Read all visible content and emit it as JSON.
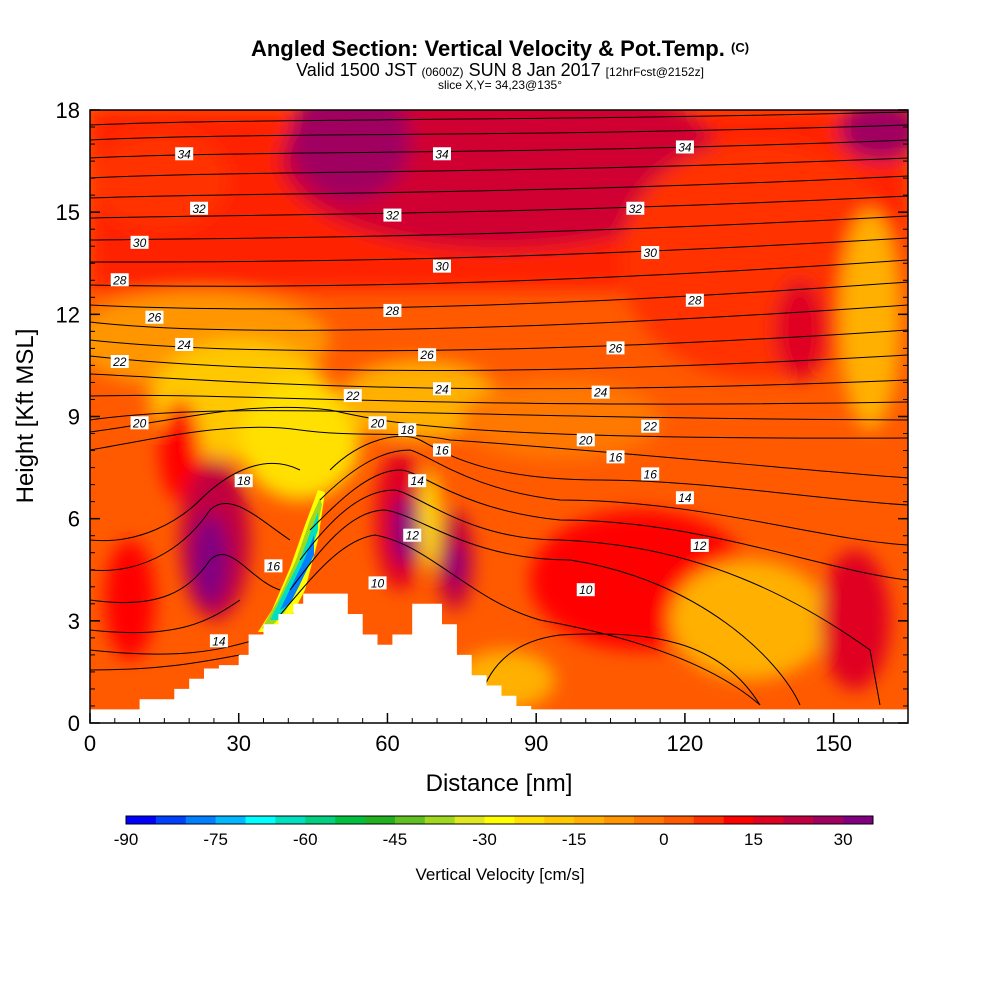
{
  "header": {
    "title_main": "Angled Section: Vertical Velocity & Pot.Temp.",
    "title_unit": "(C)",
    "valid_a": "Valid 1500 JST",
    "valid_b": "(0600Z)",
    "valid_c": "SUN 8 Jan 2017",
    "valid_d": "[12hrFcst@2152z]",
    "slice": "slice X,Y= 34,23@135°"
  },
  "chart_data": {
    "type": "heatmap",
    "xlabel": "Distance [nm]",
    "ylabel": "Height [Kft MSL]",
    "xlim": [
      0,
      165
    ],
    "ylim": [
      0,
      18
    ],
    "x_ticks": [
      "0",
      "30",
      "60",
      "90",
      "120",
      "150"
    ],
    "y_ticks": [
      "0",
      "3",
      "6",
      "9",
      "12",
      "15",
      "18"
    ],
    "terrain": [
      [
        0,
        0.4
      ],
      [
        10,
        0.4
      ],
      [
        10,
        0.7
      ],
      [
        17,
        0.7
      ],
      [
        17,
        1.0
      ],
      [
        20,
        1.0
      ],
      [
        20,
        1.3
      ],
      [
        23,
        1.3
      ],
      [
        23,
        1.6
      ],
      [
        26,
        1.6
      ],
      [
        26,
        1.7
      ],
      [
        30,
        1.7
      ],
      [
        30,
        2.0
      ],
      [
        32,
        2.0
      ],
      [
        32,
        2.6
      ],
      [
        35,
        2.6
      ],
      [
        35,
        2.9
      ],
      [
        38,
        2.9
      ],
      [
        38,
        3.2
      ],
      [
        41,
        3.2
      ],
      [
        41,
        3.5
      ],
      [
        43,
        3.5
      ],
      [
        43,
        3.8
      ],
      [
        52,
        3.8
      ],
      [
        52,
        3.2
      ],
      [
        55,
        3.2
      ],
      [
        55,
        2.6
      ],
      [
        58,
        2.6
      ],
      [
        58,
        2.3
      ],
      [
        61,
        2.3
      ],
      [
        61,
        2.6
      ],
      [
        65,
        2.6
      ],
      [
        65,
        3.5
      ],
      [
        71,
        3.5
      ],
      [
        71,
        2.9
      ],
      [
        74,
        2.9
      ],
      [
        74,
        2.0
      ],
      [
        77,
        2.0
      ],
      [
        77,
        1.4
      ],
      [
        80,
        1.4
      ],
      [
        80,
        1.1
      ],
      [
        83,
        1.1
      ],
      [
        83,
        0.8
      ],
      [
        86,
        0.8
      ],
      [
        86,
        0.5
      ],
      [
        89,
        0.5
      ],
      [
        89,
        0.4
      ],
      [
        165,
        0.4
      ]
    ],
    "colorbar": {
      "title": "Vertical Velocity [cm/s]",
      "min": -90,
      "max": 35,
      "step": 5,
      "tick_labels": [
        "-90",
        "-75",
        "-60",
        "-45",
        "-30",
        "-15",
        "0",
        "15",
        "30"
      ],
      "colors": [
        "#0000ff",
        "#0040ff",
        "#0080ff",
        "#00b8ff",
        "#00ffff",
        "#00e0c0",
        "#00d080",
        "#00c040",
        "#20b020",
        "#60c020",
        "#a0d820",
        "#e0e820",
        "#ffff00",
        "#ffe000",
        "#ffc800",
        "#ffb000",
        "#ff9600",
        "#ff7800",
        "#ff5a00",
        "#ff3000",
        "#ff0000",
        "#e00020",
        "#c00040",
        "#a00060",
        "#800080"
      ]
    },
    "isentropes_labels": [
      {
        "text": "34",
        "x": 19,
        "y": 16.7
      },
      {
        "text": "34",
        "x": 71,
        "y": 16.7
      },
      {
        "text": "34",
        "x": 120,
        "y": 16.9
      },
      {
        "text": "32",
        "x": 22,
        "y": 15.1
      },
      {
        "text": "32",
        "x": 61,
        "y": 14.9
      },
      {
        "text": "32",
        "x": 110,
        "y": 15.1
      },
      {
        "text": "30",
        "x": 10,
        "y": 14.1
      },
      {
        "text": "30",
        "x": 71,
        "y": 13.4
      },
      {
        "text": "30",
        "x": 113,
        "y": 13.8
      },
      {
        "text": "28",
        "x": 6,
        "y": 13.0
      },
      {
        "text": "28",
        "x": 61,
        "y": 12.1
      },
      {
        "text": "28",
        "x": 122,
        "y": 12.4
      },
      {
        "text": "26",
        "x": 13,
        "y": 11.9
      },
      {
        "text": "26",
        "x": 68,
        "y": 10.8
      },
      {
        "text": "26",
        "x": 106,
        "y": 11.0
      },
      {
        "text": "24",
        "x": 19,
        "y": 11.1
      },
      {
        "text": "24",
        "x": 71,
        "y": 9.8
      },
      {
        "text": "24",
        "x": 103,
        "y": 9.7
      },
      {
        "text": "22",
        "x": 6,
        "y": 10.6
      },
      {
        "text": "22",
        "x": 53,
        "y": 9.6
      },
      {
        "text": "22",
        "x": 113,
        "y": 8.7
      },
      {
        "text": "20",
        "x": 10,
        "y": 8.8
      },
      {
        "text": "20",
        "x": 58,
        "y": 8.8
      },
      {
        "text": "20",
        "x": 100,
        "y": 8.3
      },
      {
        "text": "18",
        "x": 64,
        "y": 8.6
      },
      {
        "text": "18",
        "x": 31,
        "y": 7.1
      },
      {
        "text": "16",
        "x": 71,
        "y": 8.0
      },
      {
        "text": "16",
        "x": 106,
        "y": 7.8
      },
      {
        "text": "16",
        "x": 113,
        "y": 7.3
      },
      {
        "text": "16",
        "x": 37,
        "y": 4.6
      },
      {
        "text": "14",
        "x": 66,
        "y": 7.1
      },
      {
        "text": "14",
        "x": 120,
        "y": 6.6
      },
      {
        "text": "14",
        "x": 26,
        "y": 2.4
      },
      {
        "text": "12",
        "x": 65,
        "y": 5.5
      },
      {
        "text": "12",
        "x": 123,
        "y": 5.2
      },
      {
        "text": "10",
        "x": 58,
        "y": 4.1
      },
      {
        "text": "10",
        "x": 100,
        "y": 3.9
      }
    ]
  }
}
